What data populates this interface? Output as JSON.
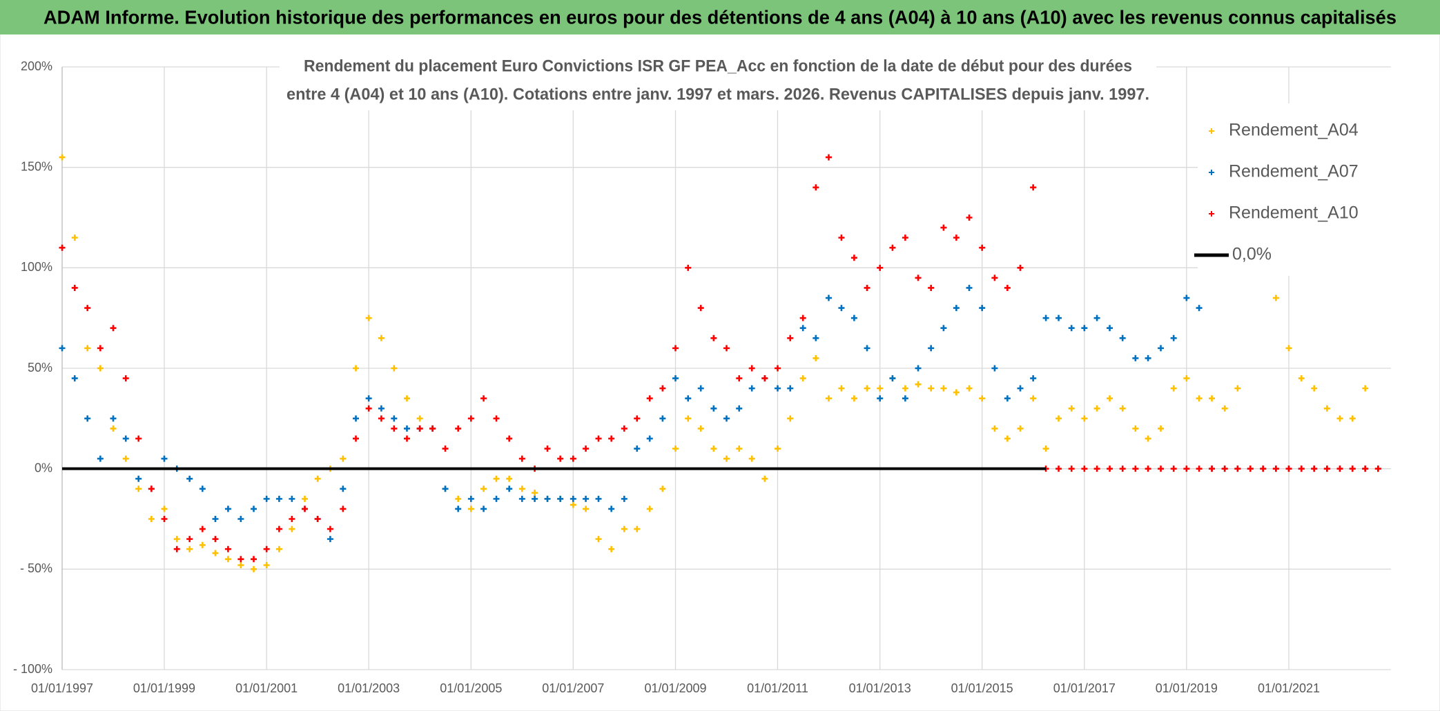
{
  "chart_data": {
    "type": "scatter",
    "header": "ADAM Informe. Evolution historique des performances en euros pour des détentions de 4 ans (A04) à 10 ans (A10) avec les revenus connus capitalisés",
    "title": [
      "Rendement du placement Euro Convictions ISR GF PEA_Acc en fonction de la date de début pour des durées",
      "entre 4 (A04) et 10 ans (A10). Cotations entre janv. 1997 et mars. 2026. Revenus CAPITALISES depuis janv. 1997."
    ],
    "xlim": [
      "1997-01-01",
      "2023-01-01"
    ],
    "xticks": [
      {
        "value": "1997-01-01",
        "label": "01/01/1997"
      },
      {
        "value": "1999-01-01",
        "label": "01/01/1999"
      },
      {
        "value": "2001-01-01",
        "label": "01/01/2001"
      },
      {
        "value": "2003-01-01",
        "label": "01/01/2003"
      },
      {
        "value": "2005-01-01",
        "label": "01/01/2005"
      },
      {
        "value": "2007-01-01",
        "label": "01/01/2007"
      },
      {
        "value": "2009-01-01",
        "label": "01/01/2009"
      },
      {
        "value": "2011-01-01",
        "label": "01/01/2011"
      },
      {
        "value": "2013-01-01",
        "label": "01/01/2013"
      },
      {
        "value": "2015-01-01",
        "label": "01/01/2015"
      },
      {
        "value": "2017-01-01",
        "label": "01/01/2017"
      },
      {
        "value": "2019-01-01",
        "label": "01/01/2019"
      },
      {
        "value": "2021-01-01",
        "label": "01/01/2021"
      }
    ],
    "ylim": [
      -100,
      200
    ],
    "yticks": [
      {
        "value": -100,
        "label": "- 100%"
      },
      {
        "value": -50,
        "label": "- 50%"
      },
      {
        "value": 0,
        "label": "0%"
      },
      {
        "value": 50,
        "label": "50%"
      },
      {
        "value": 100,
        "label": "100%"
      },
      {
        "value": 150,
        "label": "150%"
      },
      {
        "value": 200,
        "label": "200%"
      }
    ],
    "grid": true,
    "legend": "top-right",
    "x": [
      "1997-01-01",
      "1997-04-01",
      "1997-07-01",
      "1997-10-01",
      "1998-01-01",
      "1998-04-01",
      "1998-07-01",
      "1998-10-01",
      "1999-01-01",
      "1999-04-01",
      "1999-07-01",
      "1999-10-01",
      "2000-01-01",
      "2000-04-01",
      "2000-07-01",
      "2000-10-01",
      "2001-01-01",
      "2001-04-01",
      "2001-07-01",
      "2001-10-01",
      "2002-01-01",
      "2002-04-01",
      "2002-07-01",
      "2002-10-01",
      "2003-01-01",
      "2003-04-01",
      "2003-07-01",
      "2003-10-01",
      "2004-01-01",
      "2004-04-01",
      "2004-07-01",
      "2004-10-01",
      "2005-01-01",
      "2005-04-01",
      "2005-07-01",
      "2005-10-01",
      "2006-01-01",
      "2006-04-01",
      "2006-07-01",
      "2006-10-01",
      "2007-01-01",
      "2007-04-01",
      "2007-07-01",
      "2007-10-01",
      "2008-01-01",
      "2008-04-01",
      "2008-07-01",
      "2008-10-01",
      "2009-01-01",
      "2009-04-01",
      "2009-07-01",
      "2009-10-01",
      "2010-01-01",
      "2010-04-01",
      "2010-07-01",
      "2010-10-01",
      "2011-01-01",
      "2011-04-01",
      "2011-07-01",
      "2011-10-01",
      "2012-01-01",
      "2012-04-01",
      "2012-07-01",
      "2012-10-01",
      "2013-01-01",
      "2013-04-01",
      "2013-07-01",
      "2013-10-01",
      "2014-01-01",
      "2014-04-01",
      "2014-07-01",
      "2014-10-01",
      "2015-01-01",
      "2015-04-01",
      "2015-07-01",
      "2015-10-01",
      "2016-01-01",
      "2016-04-01",
      "2016-07-01",
      "2016-10-01",
      "2017-01-01",
      "2017-04-01",
      "2017-07-01",
      "2017-10-01",
      "2018-01-01",
      "2018-04-01",
      "2018-07-01",
      "2018-10-01",
      "2019-01-01",
      "2019-04-01",
      "2019-07-01",
      "2019-10-01",
      "2020-01-01",
      "2020-04-01",
      "2020-07-01",
      "2020-10-01",
      "2021-01-01",
      "2021-04-01",
      "2021-07-01",
      "2021-10-01",
      "2022-01-01",
      "2022-04-01",
      "2022-07-01",
      "2022-10-01"
    ],
    "series": [
      {
        "name": "Rendement_A04",
        "color": "#ffc000",
        "values": [
          155,
          115,
          60,
          50,
          20,
          5,
          -10,
          -25,
          -20,
          -35,
          -40,
          -38,
          -42,
          -45,
          -48,
          -50,
          -48,
          -40,
          -30,
          -15,
          -5,
          0,
          5,
          50,
          75,
          65,
          50,
          35,
          25,
          20,
          -10,
          -15,
          -20,
          -10,
          -5,
          -5,
          -10,
          -12,
          -15,
          -15,
          -18,
          -20,
          -35,
          -40,
          -30,
          -30,
          -20,
          -10,
          10,
          25,
          20,
          10,
          5,
          10,
          5,
          -5,
          10,
          25,
          45,
          55,
          35,
          40,
          35,
          40,
          40,
          45,
          40,
          42,
          40,
          40,
          38,
          40,
          35,
          20,
          15,
          20,
          35,
          10,
          25,
          30,
          25,
          30,
          35,
          30,
          20,
          15,
          20,
          40,
          45,
          35,
          35,
          30,
          40,
          null,
          null,
          85,
          60,
          45,
          40,
          30,
          25,
          25,
          40,
          0
        ]
      },
      {
        "name": "Rendement_A07",
        "color": "#0070c0",
        "values": [
          60,
          45,
          25,
          5,
          25,
          15,
          -5,
          -10,
          5,
          0,
          -5,
          -10,
          -25,
          -20,
          -25,
          -20,
          -15,
          -15,
          -15,
          -20,
          -25,
          -35,
          -10,
          25,
          35,
          30,
          25,
          20,
          20,
          20,
          -10,
          -20,
          -15,
          -20,
          -15,
          -10,
          -15,
          -15,
          -15,
          -15,
          -15,
          -15,
          -15,
          -20,
          -15,
          10,
          15,
          25,
          45,
          35,
          40,
          30,
          25,
          30,
          40,
          45,
          40,
          40,
          70,
          65,
          85,
          80,
          75,
          60,
          35,
          45,
          35,
          50,
          60,
          70,
          80,
          90,
          80,
          50,
          35,
          40,
          45,
          75,
          75,
          70,
          70,
          75,
          70,
          65,
          55,
          55,
          60,
          65,
          85,
          80,
          0,
          0,
          0,
          0,
          0,
          0,
          0,
          0,
          0,
          0,
          0,
          0,
          0,
          0
        ]
      },
      {
        "name": "Rendement_A10",
        "color": "#ff0000",
        "values": [
          110,
          90,
          80,
          60,
          70,
          45,
          15,
          -10,
          -25,
          -40,
          -35,
          -30,
          -35,
          -40,
          -45,
          -45,
          -40,
          -30,
          -25,
          -20,
          -25,
          -30,
          -20,
          15,
          30,
          25,
          20,
          15,
          20,
          20,
          10,
          20,
          25,
          35,
          25,
          15,
          5,
          0,
          10,
          5,
          5,
          10,
          15,
          15,
          20,
          25,
          35,
          40,
          60,
          100,
          80,
          65,
          60,
          45,
          50,
          45,
          50,
          65,
          75,
          140,
          155,
          115,
          105,
          90,
          100,
          110,
          115,
          95,
          90,
          120,
          115,
          125,
          110,
          95,
          90,
          100,
          140,
          0,
          0,
          0,
          0,
          0,
          0,
          0,
          0,
          0,
          0,
          0,
          0,
          0,
          0,
          0,
          0,
          0,
          0,
          0,
          0,
          0,
          0,
          0,
          0,
          0,
          0,
          0
        ]
      }
    ],
    "lines": [
      {
        "name": "0,0%",
        "color": "#000000",
        "x": [
          "1997-01-01",
          "2016-04-01"
        ],
        "values": [
          0,
          0
        ]
      }
    ]
  }
}
